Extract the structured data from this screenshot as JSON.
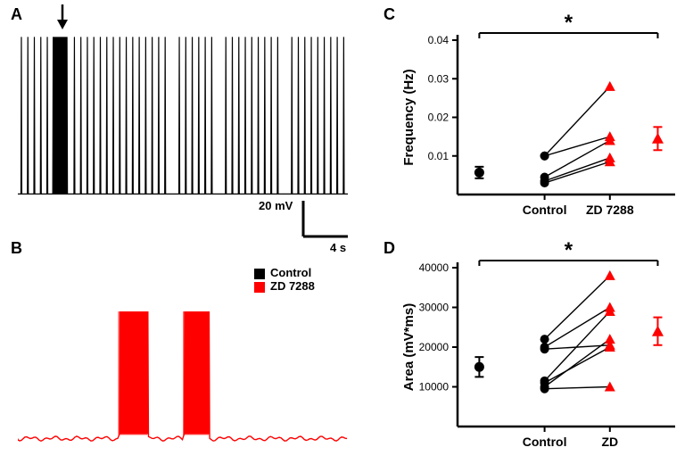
{
  "labels": {
    "A": "A",
    "B": "B",
    "C": "C",
    "D": "D"
  },
  "legend": {
    "control": "Control",
    "zd": "ZD 7288"
  },
  "scalebar": {
    "v_text": "20 mV",
    "h_text": "4 s",
    "v_mV": 20,
    "h_s": 4
  },
  "panelA": {
    "type": "trace",
    "color": "#000000",
    "baseline_mV": -60,
    "spike_peak_mV": 20,
    "spike_width_ms": 100,
    "total_s": 28,
    "arrow_time_s": 3.5,
    "n_spikes": 44
  },
  "panelB": {
    "type": "trace",
    "color": "#ff0000",
    "baseline_mV": -60,
    "burst_peak_mV": 20,
    "total_s": 28,
    "bursts": [
      {
        "start_s": 8.5,
        "end_s": 11.0
      },
      {
        "start_s": 14.0,
        "end_s": 16.2
      }
    ]
  },
  "panelC": {
    "type": "scatter-paired",
    "title_sig": "*",
    "ylabel": "Frequency (Hz)",
    "xticks": [
      "Control",
      "ZD 7288"
    ],
    "ylim": [
      0,
      0.04
    ],
    "yticks": [
      0.01,
      0.02,
      0.03,
      0.04
    ],
    "control_mean": {
      "y": 0.0057,
      "err": 0.0015,
      "color": "#000000",
      "marker": "circle"
    },
    "zd_mean": {
      "y": 0.0145,
      "err": 0.003,
      "color": "#ff0000",
      "marker": "triangle"
    },
    "pairs": [
      {
        "c": 0.003,
        "z": 0.0085
      },
      {
        "c": 0.0035,
        "z": 0.0095
      },
      {
        "c": 0.0045,
        "z": 0.014
      },
      {
        "c": 0.01,
        "z": 0.015
      },
      {
        "c": 0.01,
        "z": 0.028
      }
    ],
    "control_marker_color": "#000000",
    "zd_marker_color": "#ff0000"
  },
  "panelD": {
    "type": "scatter-paired",
    "title_sig": "*",
    "ylabel": "Area (mV*ms)",
    "xticks": [
      "Control",
      "ZD"
    ],
    "ylim": [
      0,
      40000
    ],
    "yticks": [
      10000,
      20000,
      30000,
      40000
    ],
    "control_mean": {
      "y": 15000,
      "err": 2500,
      "color": "#000000",
      "marker": "circle"
    },
    "zd_mean": {
      "y": 24000,
      "err": 3500,
      "color": "#ff0000",
      "marker": "triangle"
    },
    "pairs": [
      {
        "c": 9500,
        "z": 10000
      },
      {
        "c": 10000,
        "z": 22000
      },
      {
        "c": 11000,
        "z": 20000
      },
      {
        "c": 11500,
        "z": 29000
      },
      {
        "c": 19500,
        "z": 20500
      },
      {
        "c": 20000,
        "z": 30000
      },
      {
        "c": 22000,
        "z": 38000
      }
    ],
    "control_marker_color": "#000000",
    "zd_marker_color": "#ff0000"
  },
  "colors": {
    "black": "#000000",
    "red": "#ff0000",
    "white": "#ffffff"
  },
  "fonts": {
    "panel_label_pt": 18,
    "axis_label_pt": 14,
    "tick_pt": 12,
    "sig_pt": 22
  }
}
